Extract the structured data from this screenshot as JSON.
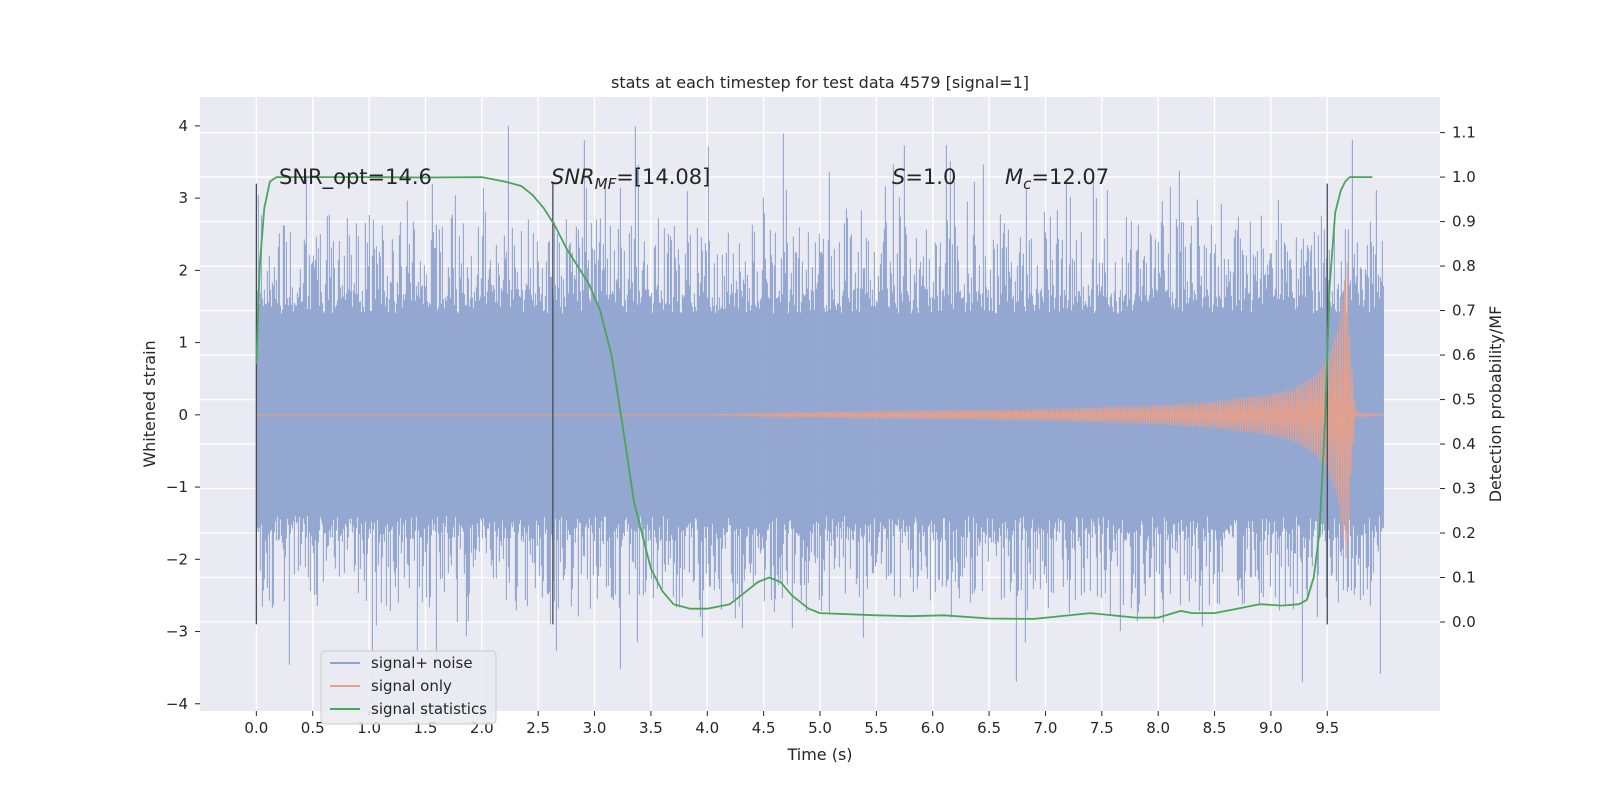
{
  "chart_data": {
    "type": "line",
    "title": "stats at each timestep for test data 4579 [signal=1]",
    "xlabel": "Time (s)",
    "ylabel": "Whitened strain",
    "ylabel_right": "Detection probability/MF",
    "xlim": [
      -0.5,
      10.5
    ],
    "ylim": [
      -4.1,
      4.4
    ],
    "ylim_right": [
      -0.2,
      1.18
    ],
    "xticks": [
      0.0,
      0.5,
      1.0,
      1.5,
      2.0,
      2.5,
      3.0,
      3.5,
      4.0,
      4.5,
      5.0,
      5.5,
      6.0,
      6.5,
      7.0,
      7.5,
      8.0,
      8.5,
      9.0,
      9.5
    ],
    "xtick_labels": [
      "0.0",
      "0.5",
      "1.0",
      "1.5",
      "2.0",
      "2.5",
      "3.0",
      "3.5",
      "4.0",
      "4.5",
      "5.0",
      "5.5",
      "6.0",
      "6.5",
      "7.0",
      "7.5",
      "8.0",
      "8.5",
      "9.0",
      "9.5"
    ],
    "yticks": [
      4,
      3,
      2,
      1,
      0,
      -1,
      -2,
      -3,
      -4
    ],
    "ytick_labels": [
      "4",
      "3",
      "2",
      "1",
      "0",
      "−1",
      "−2",
      "−3",
      "−4"
    ],
    "yticks_right": [
      1.1,
      1.0,
      0.9,
      0.8,
      0.7,
      0.6,
      0.5,
      0.4,
      0.3,
      0.2,
      0.1,
      0.0
    ],
    "ytick_labels_right": [
      "1.1",
      "1.0",
      "0.9",
      "0.8",
      "0.7",
      "0.6",
      "0.5",
      "0.4",
      "0.3",
      "0.2",
      "0.1",
      "0.0"
    ],
    "grid": true,
    "legend_position": "lower-left",
    "annotations": {
      "snr_opt": "SNR_opt=14.6",
      "snr_mf_label": "SNR",
      "snr_mf_sub": "MF",
      "snr_mf_value": "=[14.08]",
      "s_label": "S",
      "s_value": "=1.0",
      "mc_label": "M",
      "mc_sub": "c",
      "mc_value": "=12.07"
    },
    "vertical_markers": [
      {
        "x": 0.0,
        "y_top": 3.2,
        "y_bottom": -2.9
      },
      {
        "x": 2.63,
        "y_top": 3.2,
        "y_bottom": -2.9
      },
      {
        "x": 9.5,
        "y_top": 3.2,
        "y_bottom": -2.9
      }
    ],
    "series": [
      {
        "name": "signal+ noise",
        "color": "#8ea3cf",
        "axis": "left",
        "x_range": [
          0.0,
          10.0
        ],
        "core_amplitude": 1.4,
        "max_amplitude": 4.0,
        "min_value": -3.7
      },
      {
        "name": "signal only",
        "color": "#e8a08a",
        "axis": "left",
        "x": [
          0.0,
          4.0,
          5.0,
          6.0,
          7.0,
          8.0,
          8.5,
          9.0,
          9.2,
          9.4,
          9.5,
          9.6,
          9.65,
          9.68,
          9.7,
          9.75,
          10.0
        ],
        "envelope": [
          0.0,
          0.0,
          0.04,
          0.06,
          0.08,
          0.13,
          0.18,
          0.28,
          0.36,
          0.55,
          0.75,
          1.2,
          1.8,
          2.15,
          1.0,
          0.03,
          0.0
        ]
      },
      {
        "name": "signal statistics",
        "color": "#4aa55a",
        "axis": "right",
        "x": [
          0.0,
          0.03,
          0.07,
          0.12,
          0.18,
          0.3,
          0.5,
          1.0,
          1.5,
          2.0,
          2.2,
          2.35,
          2.45,
          2.55,
          2.65,
          2.75,
          2.85,
          2.95,
          3.05,
          3.15,
          3.25,
          3.35,
          3.5,
          3.6,
          3.7,
          3.85,
          4.0,
          4.2,
          4.35,
          4.45,
          4.55,
          4.65,
          4.75,
          4.9,
          5.0,
          5.5,
          5.8,
          6.1,
          6.5,
          6.9,
          7.4,
          7.8,
          8.0,
          8.2,
          8.3,
          8.5,
          8.7,
          8.9,
          9.1,
          9.25,
          9.32,
          9.38,
          9.43,
          9.48,
          9.52,
          9.57,
          9.62,
          9.66,
          9.7,
          9.8,
          9.9
        ],
        "values": [
          0.58,
          0.8,
          0.93,
          0.99,
          1.0,
          1.0,
          1.0,
          1.0,
          0.999,
          1.0,
          0.99,
          0.98,
          0.96,
          0.93,
          0.89,
          0.84,
          0.8,
          0.76,
          0.7,
          0.6,
          0.44,
          0.27,
          0.12,
          0.07,
          0.04,
          0.03,
          0.03,
          0.04,
          0.07,
          0.09,
          0.1,
          0.09,
          0.06,
          0.03,
          0.02,
          0.015,
          0.013,
          0.015,
          0.008,
          0.007,
          0.02,
          0.01,
          0.01,
          0.025,
          0.02,
          0.02,
          0.03,
          0.04,
          0.037,
          0.04,
          0.05,
          0.1,
          0.2,
          0.45,
          0.75,
          0.92,
          0.97,
          0.99,
          1.0,
          1.0,
          1.0
        ]
      }
    ]
  }
}
